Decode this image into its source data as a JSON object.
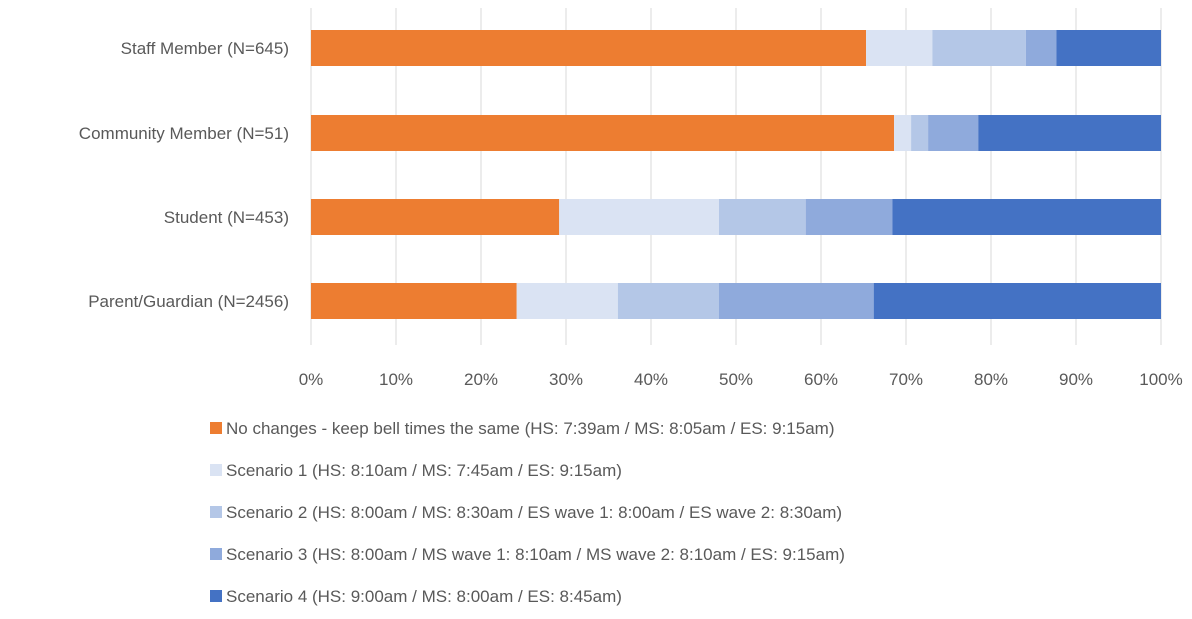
{
  "chart_data": {
    "type": "bar",
    "orientation": "horizontal",
    "stacked": "percent",
    "title": "",
    "xlabel": "",
    "ylabel": "",
    "xlim": [
      0,
      100
    ],
    "x_ticks": [
      "0%",
      "10%",
      "20%",
      "30%",
      "40%",
      "50%",
      "60%",
      "70%",
      "80%",
      "90%",
      "100%"
    ],
    "grid": true,
    "legend_position": "bottom",
    "categories": [
      "Staff Member (N=645)",
      "Community Member (N=51)",
      "Student (N=453)",
      "Parent/Guardian (N=2456)"
    ],
    "series": [
      {
        "name": "No changes - keep bell times the same (HS: 7:39am / MS: 8:05am / ES: 9:15am)",
        "color": "#ED7D31",
        "values": [
          65.3,
          68.6,
          29.2,
          24.2
        ]
      },
      {
        "name": "Scenario 1 (HS: 8:10am / MS: 7:45am / ES: 9:15am)",
        "color": "#DAE3F3",
        "values": [
          7.8,
          2.0,
          18.8,
          11.9
        ]
      },
      {
        "name": "Scenario 2 (HS: 8:00am / MS: 8:30am / ES wave 1: 8:00am / ES wave 2: 8:30am)",
        "color": "#B4C7E7",
        "values": [
          11.0,
          2.0,
          10.2,
          11.9
        ]
      },
      {
        "name": "Scenario 3 (HS: 8:00am / MS wave 1: 8:10am / MS wave 2: 8:10am / ES: 9:15am)",
        "color": "#8FAADC",
        "values": [
          3.6,
          5.9,
          10.2,
          18.2
        ]
      },
      {
        "name": "Scenario 4 (HS: 9:00am / MS: 8:00am / ES: 8:45am)",
        "color": "#4472C4",
        "values": [
          12.3,
          21.5,
          31.6,
          33.8
        ]
      }
    ]
  }
}
